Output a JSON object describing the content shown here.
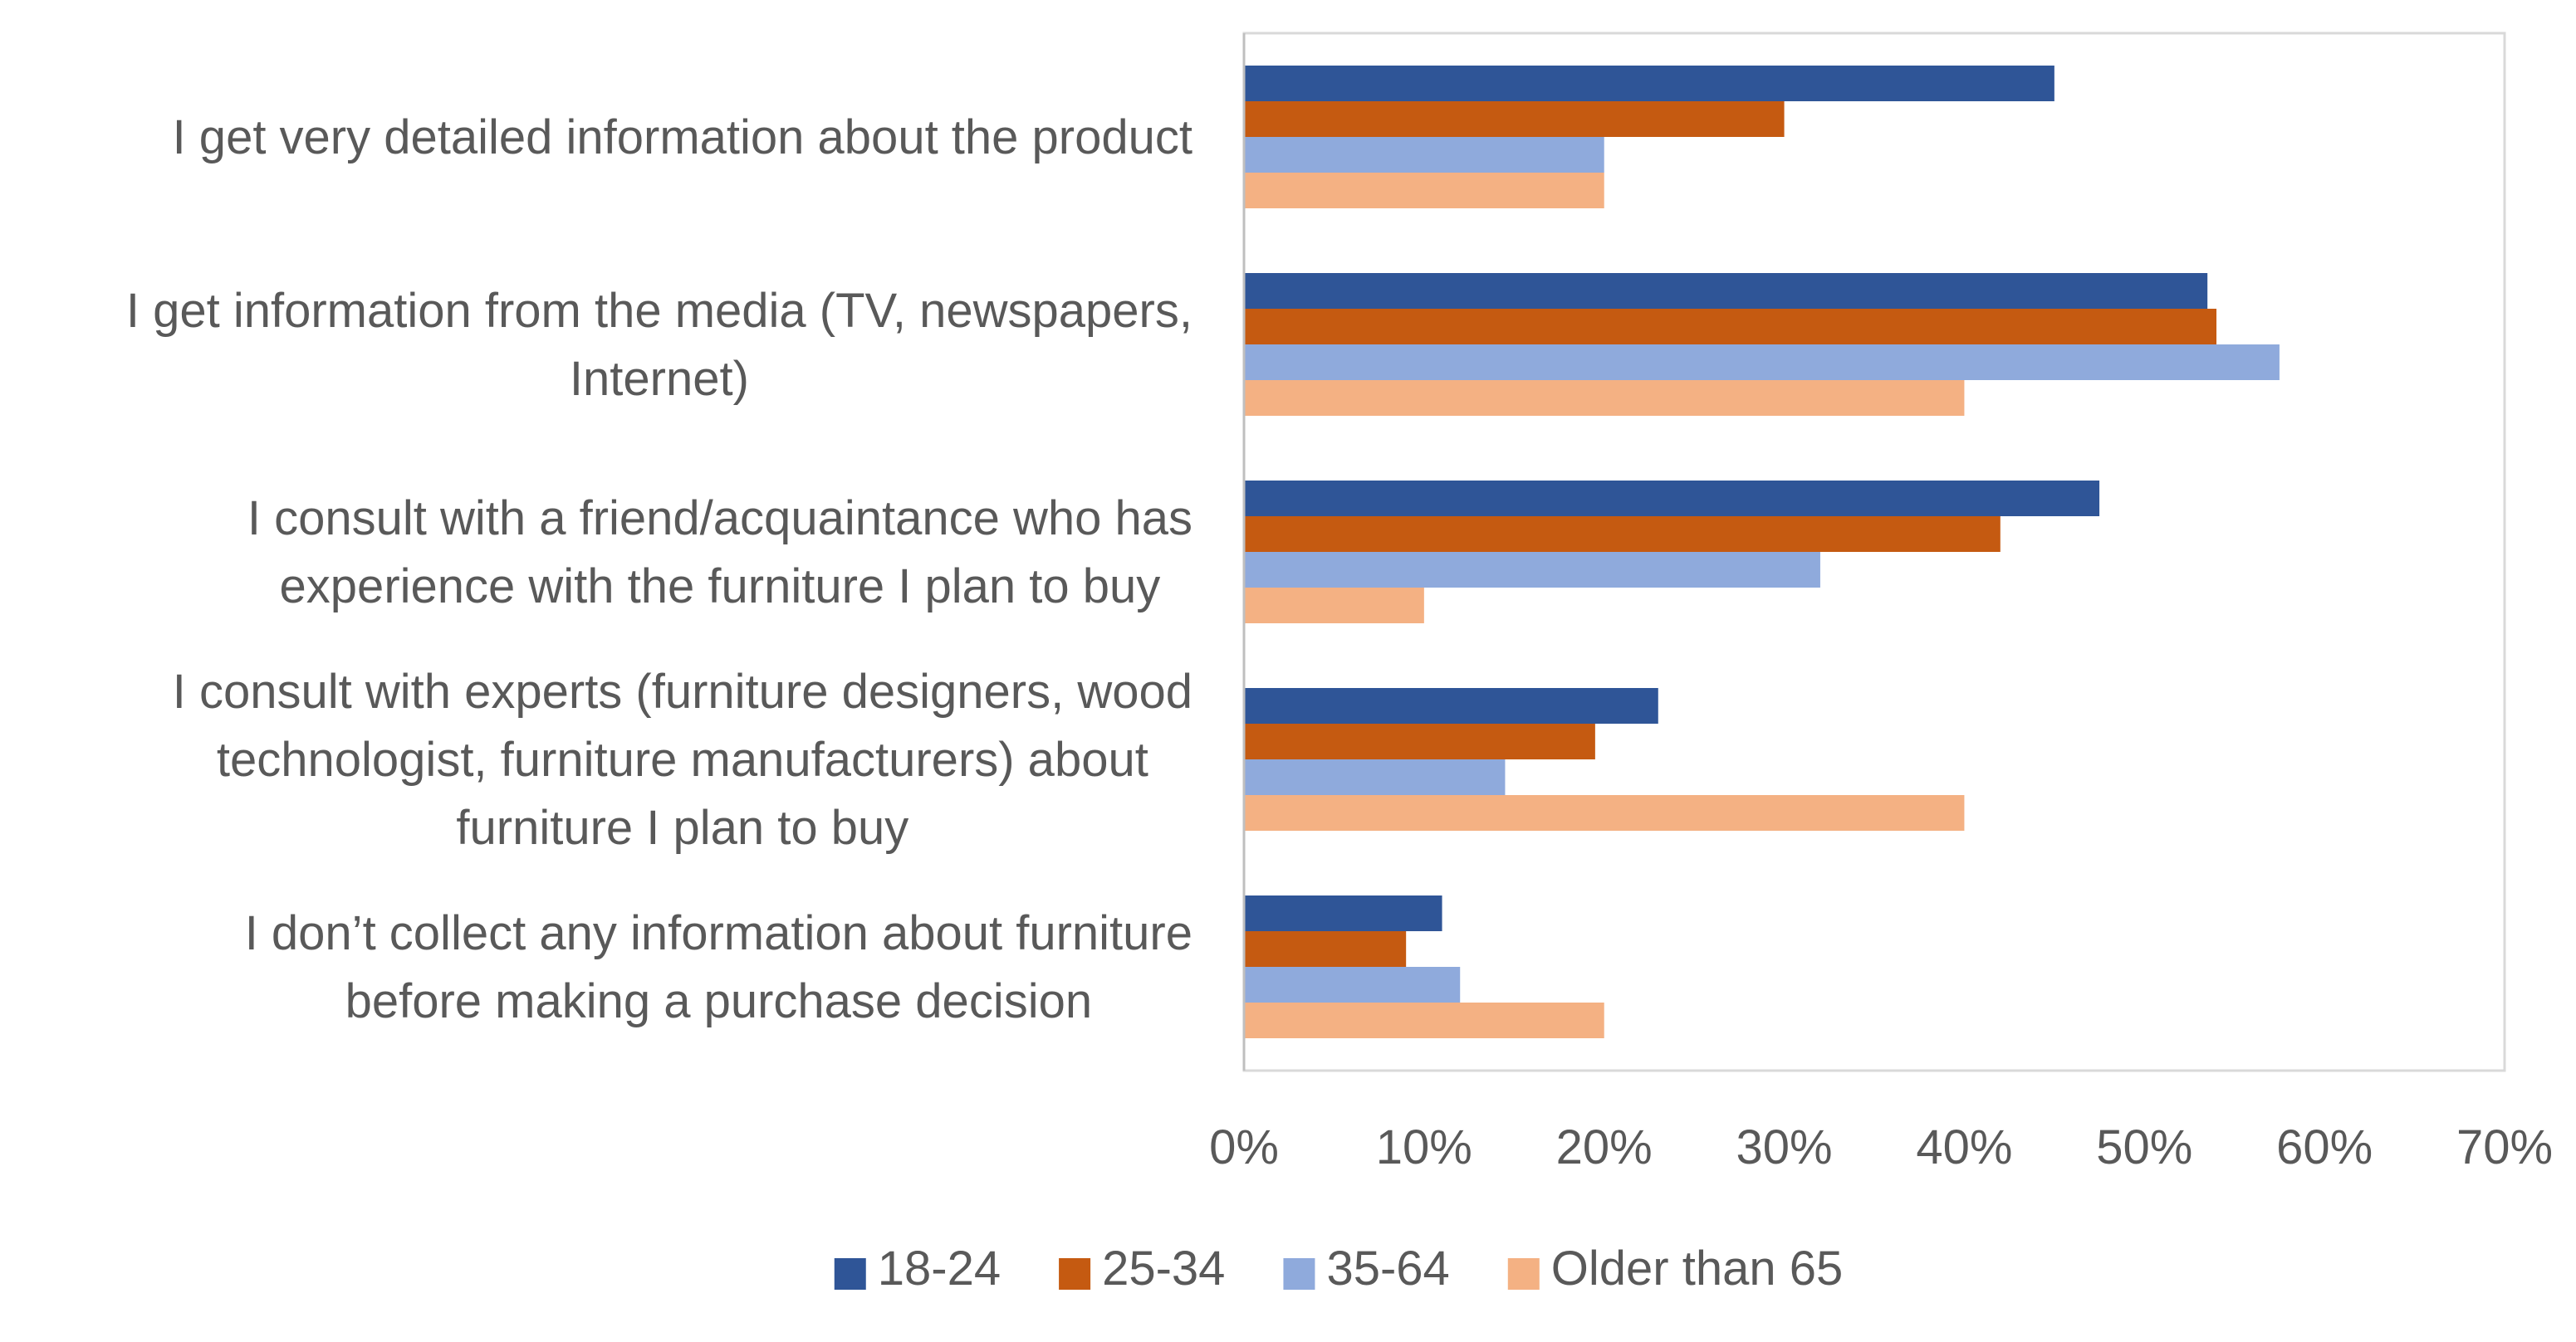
{
  "chart_data": {
    "type": "bar",
    "orientation": "horizontal",
    "categories": [
      [
        "I get very detailed information about the product"
      ],
      [
        "I get information from the media (TV, newspapers,",
        "Internet)"
      ],
      [
        "I consult with a friend/acquaintance who has",
        "experience with the furniture I plan to buy"
      ],
      [
        "I consult with experts (furniture designers, wood",
        "technologist, furniture manufacturers) about",
        "furniture I plan to buy"
      ],
      [
        "I don’t collect any information about furniture",
        "before making a purchase decision"
      ]
    ],
    "series": [
      {
        "name": "18-24",
        "color": "#2F5597",
        "values": [
          45,
          53.5,
          47.5,
          23,
          11
        ]
      },
      {
        "name": "25-34",
        "color": "#C55A11",
        "values": [
          30,
          54,
          42,
          19.5,
          9
        ]
      },
      {
        "name": "35-64",
        "color": "#8FAADC",
        "values": [
          20,
          57.5,
          32,
          14.5,
          12
        ]
      },
      {
        "name": "Older than 65",
        "color": "#F4B183",
        "values": [
          20,
          40,
          10,
          40,
          20
        ]
      }
    ],
    "xlim": [
      0,
      70
    ],
    "xticks": [
      "0%",
      "10%",
      "20%",
      "30%",
      "40%",
      "50%",
      "60%",
      "70%"
    ],
    "grid": false,
    "legend": "bottom",
    "title": "",
    "xlabel": "",
    "ylabel": ""
  }
}
